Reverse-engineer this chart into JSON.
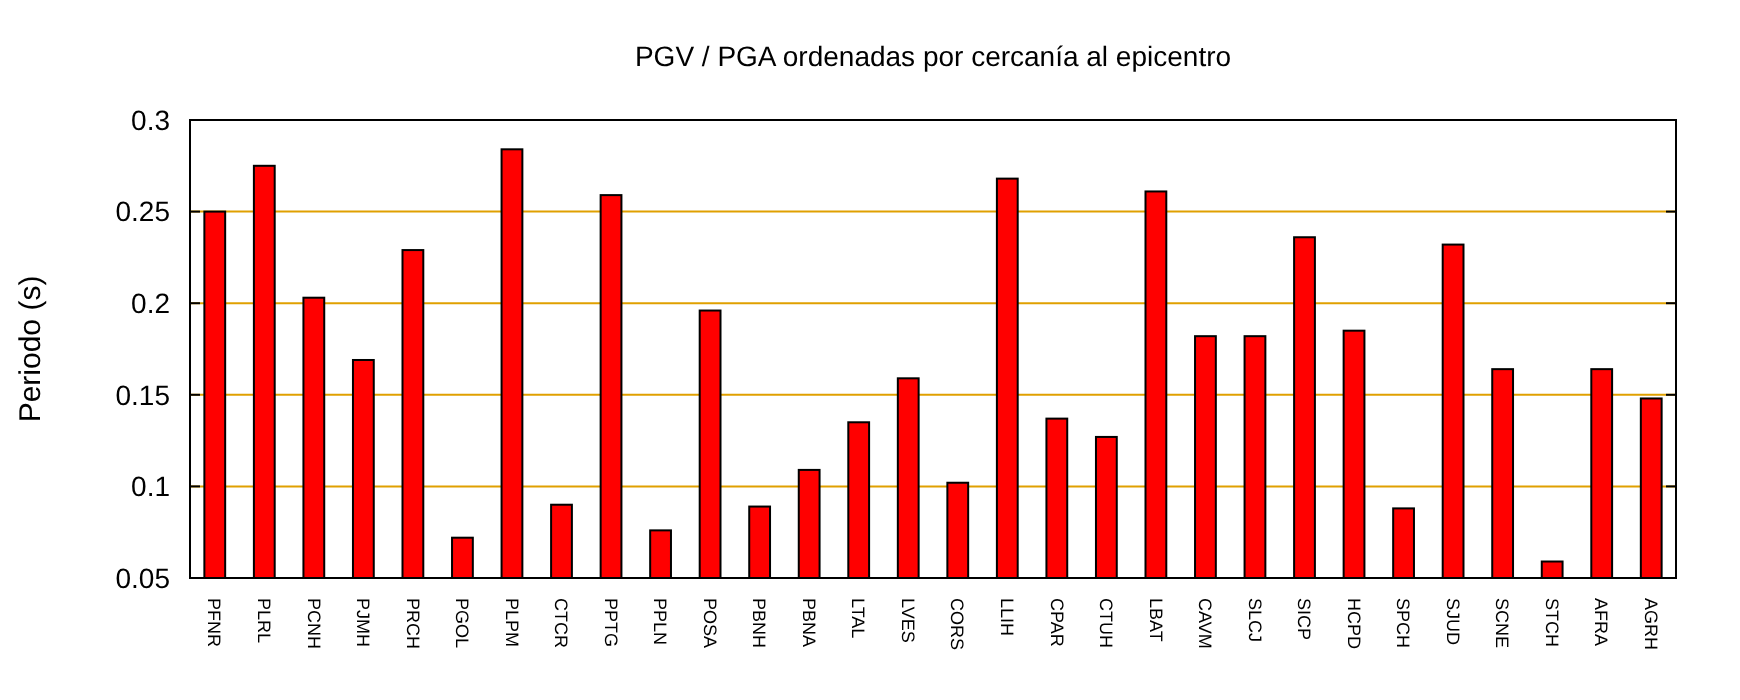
{
  "chart_data": {
    "type": "bar",
    "title": "PGV / PGA ordenadas por cercanía al epicentro",
    "ylabel": "Periodo (s)",
    "categories": [
      "PFNR",
      "PLRL",
      "PCNH",
      "PJMH",
      "PRCH",
      "PGOL",
      "PLPM",
      "CTCR",
      "PPTG",
      "PPLN",
      "POSA",
      "PBNH",
      "PBNA",
      "LTAL",
      "LVES",
      "CORS",
      "LLIH",
      "CPAR",
      "CTUH",
      "LBAT",
      "CAVM",
      "SLCJ",
      "SICP",
      "HCPD",
      "SPCH",
      "SJUD",
      "SCNE",
      "STCH",
      "AFRA",
      "AGRH"
    ],
    "values": [
      0.25,
      0.275,
      0.203,
      0.169,
      0.229,
      0.072,
      0.284,
      0.09,
      0.259,
      0.076,
      0.196,
      0.089,
      0.109,
      0.135,
      0.159,
      0.102,
      0.268,
      0.137,
      0.127,
      0.261,
      0.182,
      0.182,
      0.236,
      0.185,
      0.088,
      0.232,
      0.164,
      0.059,
      0.164,
      0.148
    ],
    "color": "#ff0000",
    "ylim": [
      0.05,
      0.3
    ],
    "yticks": [
      0.05,
      0.1,
      0.15,
      0.2,
      0.25,
      0.3
    ],
    "grid": "y"
  }
}
